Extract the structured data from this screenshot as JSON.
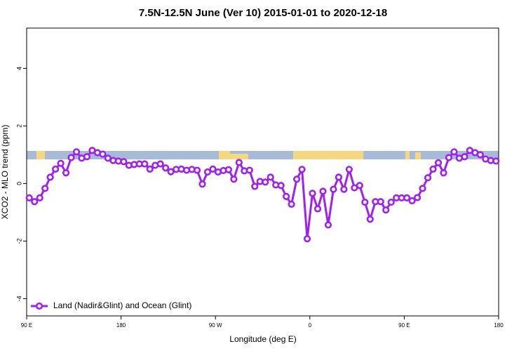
{
  "chart_data": {
    "type": "line",
    "title": "7.5N-12.5N June (Ver 10)   2015-01-01 to 2020-12-18",
    "x_label": "Longitude (deg E)",
    "y_label": "XCO2 - MLO trend (ppm)",
    "x": [
      92.5,
      97.5,
      102.5,
      107.5,
      112.5,
      117.5,
      122.5,
      127.5,
      132.5,
      137.5,
      142.5,
      147.5,
      152.5,
      157.5,
      162.5,
      167.5,
      172.5,
      177.5,
      182.5,
      187.5,
      192.5,
      197.5,
      202.5,
      207.5,
      212.5,
      217.5,
      222.5,
      227.5,
      232.5,
      237.5,
      242.5,
      247.5,
      252.5,
      257.5,
      262.5,
      267.5,
      272.5,
      277.5,
      282.5,
      287.5,
      292.5,
      297.5,
      302.5,
      307.5,
      312.5,
      317.5,
      322.5,
      327.5,
      332.5,
      337.5,
      342.5,
      347.5,
      352.5,
      357.5,
      362.5,
      367.5,
      372.5,
      377.5,
      382.5,
      387.5,
      392.5,
      397.5,
      402.5,
      407.5,
      412.5,
      417.5,
      422.5,
      427.5,
      432.5,
      437.5,
      442.5,
      447.5,
      452.5,
      457.5,
      462.5,
      467.5,
      472.5,
      477.5,
      482.5,
      487.5,
      492.5,
      497.5,
      502.5,
      507.5,
      512.5,
      517.5,
      522.5,
      527.5,
      532.5,
      537.5
    ],
    "series": [
      {
        "name": "Land (Nadir&Glint) and Ocean (Glint)",
        "color": "#a020f0",
        "values": [
          -0.5,
          -0.63,
          -0.5,
          -0.17,
          0.22,
          0.5,
          0.7,
          0.37,
          0.9,
          1.1,
          0.88,
          0.93,
          1.15,
          1.07,
          1.02,
          0.88,
          0.8,
          0.78,
          0.76,
          0.63,
          0.66,
          0.68,
          0.68,
          0.5,
          0.63,
          0.68,
          0.54,
          0.41,
          0.49,
          0.5,
          0.46,
          0.49,
          0.46,
          -0.02,
          0.4,
          0.5,
          0.4,
          0.45,
          0.48,
          0.15,
          0.73,
          0.44,
          0.46,
          -0.1,
          0.07,
          0.05,
          0.22,
          -0.05,
          -0.07,
          -0.45,
          -0.72,
          0.15,
          0.49,
          -1.92,
          -0.34,
          -0.88,
          -0.27,
          -1.44,
          -0.2,
          0.22,
          -0.2,
          0.49,
          -0.15,
          -0.07,
          -0.65,
          -1.24,
          -0.63,
          -0.63,
          -0.92,
          -0.65,
          -0.5,
          -0.5,
          -0.5,
          -0.6,
          -0.49,
          -0.17,
          0.2,
          0.5,
          0.72,
          0.37,
          0.9,
          1.1,
          0.88,
          0.93,
          1.15,
          1.07,
          1.0,
          0.85,
          0.8,
          0.78
        ]
      }
    ],
    "xlim": [
      90,
      540
    ],
    "xticks": [
      {
        "value": 90,
        "label": "90 E"
      },
      {
        "value": 180,
        "label": "180"
      },
      {
        "value": 270,
        "label": "90 W"
      },
      {
        "value": 360,
        "label": "0"
      },
      {
        "value": 450,
        "label": "90 E"
      },
      {
        "value": 540,
        "label": "180"
      }
    ],
    "ylim": [
      -4.6,
      5.4
    ],
    "yticks": [
      -4,
      -2,
      0,
      2,
      4
    ],
    "legend": "bottom-left"
  }
}
